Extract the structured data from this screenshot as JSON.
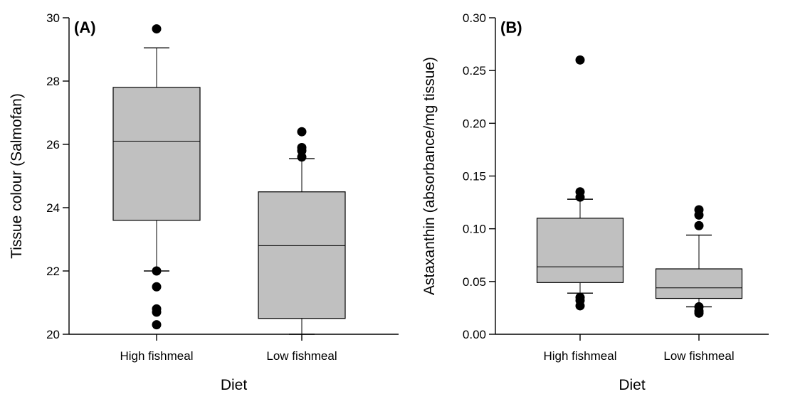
{
  "chart_data": [
    {
      "type": "box",
      "panel_label": "(A)",
      "xlabel": "Diet",
      "ylabel": "Tissue colour (Salmofan)",
      "ylim": [
        20,
        30
      ],
      "yticks": [
        20,
        22,
        24,
        26,
        28,
        30
      ],
      "grid": false,
      "categories": [
        "High fishmeal",
        "Low fishmeal"
      ],
      "boxes": [
        {
          "category": "High fishmeal",
          "whisker_low": 22.0,
          "q1": 23.6,
          "median": 26.1,
          "q3": 27.8,
          "whisker_high": 29.05,
          "outliers": [
            29.65,
            22.0,
            21.5,
            20.8,
            20.7,
            20.3
          ]
        },
        {
          "category": "Low fishmeal",
          "whisker_low": 20.0,
          "q1": 20.5,
          "median": 22.8,
          "q3": 24.5,
          "whisker_high": 25.55,
          "outliers": [
            26.4,
            25.9,
            25.8,
            25.6
          ]
        }
      ]
    },
    {
      "type": "box",
      "panel_label": "(B)",
      "xlabel": "Diet",
      "ylabel": "Astaxanthin (absorbance/mg tissue)",
      "ylim": [
        0,
        0.3
      ],
      "yticks": [
        "0.00",
        "0.05",
        "0.10",
        "0.15",
        "0.20",
        "0.25",
        "0.30"
      ],
      "grid": false,
      "categories": [
        "High fishmeal",
        "Low fishmeal"
      ],
      "boxes": [
        {
          "category": "High fishmeal",
          "whisker_low": 0.039,
          "q1": 0.049,
          "median": 0.064,
          "q3": 0.11,
          "whisker_high": 0.128,
          "outliers": [
            0.26,
            0.135,
            0.13,
            0.035,
            0.032,
            0.027
          ]
        },
        {
          "category": "Low fishmeal",
          "whisker_low": 0.026,
          "q1": 0.034,
          "median": 0.044,
          "q3": 0.062,
          "whisker_high": 0.094,
          "outliers": [
            0.118,
            0.113,
            0.103,
            0.026,
            0.022,
            0.02
          ]
        }
      ]
    }
  ],
  "colors": {
    "box_fill": "#c0c0c0",
    "stroke": "#000000",
    "outlier": "#000000"
  }
}
